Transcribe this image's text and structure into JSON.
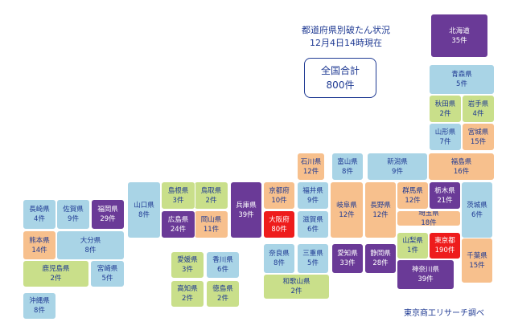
{
  "header": {
    "title_line1": "都道府県別破たん状況",
    "title_line2": "12月4日14時現在"
  },
  "total": {
    "label": "全国合計",
    "value": "800件"
  },
  "source": "東京商工リサーチ調べ",
  "colors": {
    "blue": "#a9d4e6",
    "yellow": "#f6dc92",
    "green": "#c9df8a",
    "orange": "#f7c08d",
    "purple": "#6a3a97",
    "red": "#ee1c1c",
    "text": "#1f3a93"
  },
  "prefectures": [
    {
      "id": "hokkaido",
      "name": "北海道",
      "count": "35件",
      "color": "purple"
    },
    {
      "id": "aomori",
      "name": "青森県",
      "count": "5件",
      "color": "blue"
    },
    {
      "id": "akita",
      "name": "秋田県",
      "count": "2件",
      "color": "green"
    },
    {
      "id": "iwate",
      "name": "岩手県",
      "count": "4件",
      "color": "green"
    },
    {
      "id": "yamagata",
      "name": "山形県",
      "count": "7件",
      "color": "blue"
    },
    {
      "id": "miyagi",
      "name": "宮城県",
      "count": "15件",
      "color": "orange"
    },
    {
      "id": "niigata",
      "name": "新潟県",
      "count": "9件",
      "color": "blue"
    },
    {
      "id": "fukushima",
      "name": "福島県",
      "count": "16件",
      "color": "orange"
    },
    {
      "id": "ishikawa",
      "name": "石川県",
      "count": "12件",
      "color": "orange"
    },
    {
      "id": "toyama",
      "name": "富山県",
      "count": "8件",
      "color": "blue"
    },
    {
      "id": "nagano",
      "name": "長野県",
      "count": "12件",
      "color": "orange"
    },
    {
      "id": "gunma",
      "name": "群馬県",
      "count": "12件",
      "color": "orange"
    },
    {
      "id": "tochigi",
      "name": "栃木県",
      "count": "21件",
      "color": "purple"
    },
    {
      "id": "ibaraki",
      "name": "茨城県",
      "count": "6件",
      "color": "blue"
    },
    {
      "id": "saitama",
      "name": "埼玉県",
      "count": "18件",
      "color": "orange"
    },
    {
      "id": "tokyo",
      "name": "東京都",
      "count": "190件",
      "color": "red"
    },
    {
      "id": "chiba",
      "name": "千葉県",
      "count": "15件",
      "color": "orange"
    },
    {
      "id": "yamanashi",
      "name": "山梨県",
      "count": "1件",
      "color": "green"
    },
    {
      "id": "kanagawa",
      "name": "神奈川県",
      "count": "39件",
      "color": "purple"
    },
    {
      "id": "gifu",
      "name": "岐阜県",
      "count": "12件",
      "color": "orange"
    },
    {
      "id": "shizuoka",
      "name": "静岡県",
      "count": "28件",
      "color": "purple"
    },
    {
      "id": "aichi",
      "name": "愛知県",
      "count": "33件",
      "color": "purple"
    },
    {
      "id": "fukui",
      "name": "福井県",
      "count": "9件",
      "color": "blue"
    },
    {
      "id": "shiga",
      "name": "滋賀県",
      "count": "6件",
      "color": "blue"
    },
    {
      "id": "mie",
      "name": "三重県",
      "count": "5件",
      "color": "blue"
    },
    {
      "id": "kyoto",
      "name": "京都府",
      "count": "10件",
      "color": "orange"
    },
    {
      "id": "osaka",
      "name": "大阪府",
      "count": "80件",
      "color": "red"
    },
    {
      "id": "nara",
      "name": "奈良県",
      "count": "8件",
      "color": "blue"
    },
    {
      "id": "wakayama",
      "name": "和歌山県",
      "count": "2件",
      "color": "green"
    },
    {
      "id": "hyogo",
      "name": "兵庫県",
      "count": "39件",
      "color": "purple"
    },
    {
      "id": "tottori",
      "name": "鳥取県",
      "count": "2件",
      "color": "green"
    },
    {
      "id": "shimane",
      "name": "島根県",
      "count": "3件",
      "color": "green"
    },
    {
      "id": "okayama",
      "name": "岡山県",
      "count": "11件",
      "color": "orange"
    },
    {
      "id": "hiroshima",
      "name": "広島県",
      "count": "24件",
      "color": "purple"
    },
    {
      "id": "yamaguchi",
      "name": "山口県",
      "count": "8件",
      "color": "blue"
    },
    {
      "id": "ehime",
      "name": "愛媛県",
      "count": "3件",
      "color": "green"
    },
    {
      "id": "kagawa",
      "name": "香川県",
      "count": "6件",
      "color": "blue"
    },
    {
      "id": "kochi",
      "name": "高知県",
      "count": "2件",
      "color": "green"
    },
    {
      "id": "tokushima",
      "name": "徳島県",
      "count": "2件",
      "color": "green"
    },
    {
      "id": "fukuoka",
      "name": "福岡県",
      "count": "29件",
      "color": "purple"
    },
    {
      "id": "saga",
      "name": "佐賀県",
      "count": "9件",
      "color": "blue"
    },
    {
      "id": "nagasaki",
      "name": "長崎県",
      "count": "4件",
      "color": "blue"
    },
    {
      "id": "oita",
      "name": "大分県",
      "count": "8件",
      "color": "blue"
    },
    {
      "id": "kumamoto",
      "name": "熊本県",
      "count": "14件",
      "color": "orange"
    },
    {
      "id": "miyazaki",
      "name": "宮崎県",
      "count": "5件",
      "color": "blue"
    },
    {
      "id": "kagoshima",
      "name": "鹿児島県",
      "count": "2件",
      "color": "green"
    },
    {
      "id": "okinawa",
      "name": "沖縄県",
      "count": "8件",
      "color": "blue"
    }
  ]
}
